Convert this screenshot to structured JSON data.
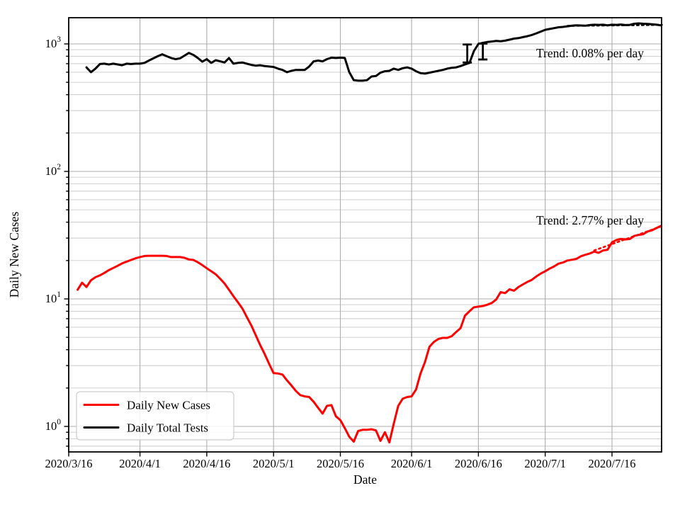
{
  "chart_data": {
    "type": "line",
    "title": "",
    "xlabel": "Date",
    "ylabel": "Daily New Cases",
    "yscale": "log",
    "ylim": [
      0.63,
      1600
    ],
    "x_unit": "days since 2020/3/16",
    "xlim_days": [
      0,
      133.2
    ],
    "grid": "major+minor horizontal, major vertical",
    "x_ticks": [
      {
        "day": 0,
        "label": "2020/3/16"
      },
      {
        "day": 16,
        "label": "2020/4/1"
      },
      {
        "day": 31,
        "label": "2020/4/16"
      },
      {
        "day": 46,
        "label": "2020/5/1"
      },
      {
        "day": 61,
        "label": "2020/5/16"
      },
      {
        "day": 77,
        "label": "2020/6/1"
      },
      {
        "day": 92,
        "label": "2020/6/16"
      },
      {
        "day": 107,
        "label": "2020/7/1"
      },
      {
        "day": 122,
        "label": "2020/7/16"
      }
    ],
    "y_ticks": [
      {
        "value": 1,
        "base": "10",
        "exp": "0"
      },
      {
        "value": 10,
        "base": "10",
        "exp": "1"
      },
      {
        "value": 100,
        "base": "10",
        "exp": "2"
      },
      {
        "value": 1000,
        "base": "10",
        "exp": "3"
      }
    ],
    "series": [
      {
        "name": "Daily New Cases",
        "color": "#ff0000",
        "style": "solid",
        "width": 3,
        "points": [
          [
            2,
            11.8
          ],
          [
            3,
            13.4
          ],
          [
            4,
            12.4
          ],
          [
            5,
            14.0
          ],
          [
            6,
            14.8
          ],
          [
            7,
            15.3
          ],
          [
            8,
            16.0
          ],
          [
            9,
            16.8
          ],
          [
            10,
            17.5
          ],
          [
            11,
            18.2
          ],
          [
            12,
            19.0
          ],
          [
            13,
            19.6
          ],
          [
            14,
            20.2
          ],
          [
            15,
            20.8
          ],
          [
            16,
            21.3
          ],
          [
            17,
            21.7
          ],
          [
            18,
            21.8
          ],
          [
            19,
            21.8
          ],
          [
            20,
            21.8
          ],
          [
            21,
            21.8
          ],
          [
            22,
            21.7
          ],
          [
            23,
            21.3
          ],
          [
            24,
            21.3
          ],
          [
            25,
            21.3
          ],
          [
            26,
            21.0
          ],
          [
            27,
            20.4
          ],
          [
            28,
            20.2
          ],
          [
            29,
            19.4
          ],
          [
            30,
            18.4
          ],
          [
            31,
            17.4
          ],
          [
            32,
            16.5
          ],
          [
            33,
            15.6
          ],
          [
            34,
            14.4
          ],
          [
            35,
            13.2
          ],
          [
            36,
            11.8
          ],
          [
            37,
            10.5
          ],
          [
            38,
            9.4
          ],
          [
            39,
            8.4
          ],
          [
            40,
            7.2
          ],
          [
            41,
            6.2
          ],
          [
            42,
            5.2
          ],
          [
            43,
            4.35
          ],
          [
            44,
            3.7
          ],
          [
            45,
            3.1
          ],
          [
            46,
            2.62
          ],
          [
            47,
            2.6
          ],
          [
            48,
            2.55
          ],
          [
            49,
            2.3
          ],
          [
            50,
            2.1
          ],
          [
            51,
            1.9
          ],
          [
            52,
            1.76
          ],
          [
            53,
            1.72
          ],
          [
            54,
            1.7
          ],
          [
            55,
            1.56
          ],
          [
            56,
            1.4
          ],
          [
            57,
            1.26
          ],
          [
            58,
            1.45
          ],
          [
            59,
            1.47
          ],
          [
            60,
            1.2
          ],
          [
            61,
            1.12
          ],
          [
            62,
            0.97
          ],
          [
            63,
            0.83
          ],
          [
            64,
            0.76
          ],
          [
            65,
            0.92
          ],
          [
            66,
            0.94
          ],
          [
            67,
            0.94
          ],
          [
            68,
            0.95
          ],
          [
            69,
            0.93
          ],
          [
            70,
            0.77
          ],
          [
            71,
            0.9
          ],
          [
            72,
            0.75
          ],
          [
            73,
            1.05
          ],
          [
            74,
            1.45
          ],
          [
            75,
            1.65
          ],
          [
            76,
            1.7
          ],
          [
            77,
            1.72
          ],
          [
            78,
            1.95
          ],
          [
            79,
            2.6
          ],
          [
            80,
            3.2
          ],
          [
            81,
            4.2
          ],
          [
            82,
            4.6
          ],
          [
            83,
            4.85
          ],
          [
            84,
            4.95
          ],
          [
            85,
            4.95
          ],
          [
            86,
            5.1
          ],
          [
            87,
            5.5
          ],
          [
            88,
            5.9
          ],
          [
            89,
            7.4
          ],
          [
            90,
            8.0
          ],
          [
            91,
            8.6
          ],
          [
            92,
            8.7
          ],
          [
            93,
            8.8
          ],
          [
            94,
            9.0
          ],
          [
            95,
            9.3
          ],
          [
            96,
            9.9
          ],
          [
            97,
            11.3
          ],
          [
            98,
            11.1
          ],
          [
            99,
            11.9
          ],
          [
            100,
            11.6
          ],
          [
            101,
            12.4
          ],
          [
            102,
            13.0
          ],
          [
            103,
            13.6
          ],
          [
            104,
            14.1
          ],
          [
            105,
            15.0
          ],
          [
            106,
            15.8
          ],
          [
            107,
            16.5
          ],
          [
            108,
            17.3
          ],
          [
            109,
            18.0
          ],
          [
            110,
            18.9
          ],
          [
            111,
            19.3
          ],
          [
            112,
            20.0
          ],
          [
            113,
            20.3
          ],
          [
            114,
            20.6
          ],
          [
            115,
            21.6
          ],
          [
            116,
            22.2
          ],
          [
            117,
            22.7
          ],
          [
            118,
            23.5
          ],
          [
            119,
            23.0
          ],
          [
            120,
            24.0
          ],
          [
            121,
            24.3
          ],
          [
            122,
            27.8
          ],
          [
            123,
            29.0
          ],
          [
            124,
            29.5
          ],
          [
            125,
            29.3
          ],
          [
            126,
            29.5
          ],
          [
            127,
            31.2
          ],
          [
            128,
            31.8
          ],
          [
            129,
            32.2
          ],
          [
            130,
            33.8
          ],
          [
            131,
            34.6
          ],
          [
            132,
            36.0
          ],
          [
            133,
            37.4
          ]
        ]
      },
      {
        "name": "Daily Total Tests",
        "color": "#000000",
        "style": "solid",
        "width": 3,
        "points": [
          [
            4,
            655
          ],
          [
            5,
            600
          ],
          [
            6,
            640
          ],
          [
            7,
            695
          ],
          [
            8,
            700
          ],
          [
            9,
            690
          ],
          [
            10,
            700
          ],
          [
            11,
            690
          ],
          [
            12,
            680
          ],
          [
            13,
            700
          ],
          [
            14,
            695
          ],
          [
            15,
            700
          ],
          [
            16,
            700
          ],
          [
            17,
            710
          ],
          [
            18,
            740
          ],
          [
            19,
            770
          ],
          [
            20,
            800
          ],
          [
            21,
            830
          ],
          [
            22,
            800
          ],
          [
            23,
            775
          ],
          [
            24,
            760
          ],
          [
            25,
            770
          ],
          [
            26,
            810
          ],
          [
            27,
            850
          ],
          [
            28,
            820
          ],
          [
            29,
            775
          ],
          [
            30,
            725
          ],
          [
            31,
            760
          ],
          [
            32,
            710
          ],
          [
            33,
            745
          ],
          [
            34,
            730
          ],
          [
            35,
            715
          ],
          [
            36,
            775
          ],
          [
            37,
            700
          ],
          [
            38,
            710
          ],
          [
            39,
            715
          ],
          [
            40,
            700
          ],
          [
            41,
            685
          ],
          [
            42,
            675
          ],
          [
            43,
            680
          ],
          [
            44,
            670
          ],
          [
            45,
            665
          ],
          [
            46,
            660
          ],
          [
            47,
            640
          ],
          [
            48,
            625
          ],
          [
            49,
            600
          ],
          [
            50,
            615
          ],
          [
            51,
            625
          ],
          [
            52,
            625
          ],
          [
            53,
            625
          ],
          [
            54,
            665
          ],
          [
            55,
            730
          ],
          [
            56,
            740
          ],
          [
            57,
            730
          ],
          [
            58,
            760
          ],
          [
            59,
            780
          ],
          [
            60,
            775
          ],
          [
            61,
            780
          ],
          [
            62,
            775
          ],
          [
            63,
            600
          ],
          [
            64,
            520
          ],
          [
            65,
            515
          ],
          [
            66,
            515
          ],
          [
            67,
            520
          ],
          [
            68,
            555
          ],
          [
            69,
            560
          ],
          [
            70,
            595
          ],
          [
            71,
            610
          ],
          [
            72,
            615
          ],
          [
            73,
            640
          ],
          [
            74,
            625
          ],
          [
            75,
            645
          ],
          [
            76,
            655
          ],
          [
            77,
            640
          ],
          [
            78,
            610
          ],
          [
            79,
            590
          ],
          [
            80,
            585
          ],
          [
            81,
            595
          ],
          [
            82,
            605
          ],
          [
            83,
            615
          ],
          [
            84,
            625
          ],
          [
            85,
            640
          ],
          [
            86,
            650
          ],
          [
            87,
            655
          ],
          [
            88,
            670
          ],
          [
            89,
            690
          ],
          [
            90,
            710
          ],
          [
            91,
            880
          ],
          [
            92,
            1000
          ],
          [
            93,
            1020
          ],
          [
            94,
            1035
          ],
          [
            95,
            1045
          ],
          [
            96,
            1055
          ],
          [
            97,
            1050
          ],
          [
            98,
            1060
          ],
          [
            99,
            1080
          ],
          [
            100,
            1100
          ],
          [
            101,
            1110
          ],
          [
            102,
            1130
          ],
          [
            103,
            1150
          ],
          [
            104,
            1175
          ],
          [
            105,
            1210
          ],
          [
            106,
            1250
          ],
          [
            107,
            1290
          ],
          [
            108,
            1310
          ],
          [
            109,
            1330
          ],
          [
            110,
            1350
          ],
          [
            111,
            1360
          ],
          [
            112,
            1375
          ],
          [
            113,
            1390
          ],
          [
            114,
            1400
          ],
          [
            115,
            1395
          ],
          [
            116,
            1390
          ],
          [
            117,
            1405
          ],
          [
            118,
            1415
          ],
          [
            119,
            1410
          ],
          [
            120,
            1415
          ],
          [
            121,
            1400
          ],
          [
            122,
            1415
          ],
          [
            123,
            1410
          ],
          [
            124,
            1420
          ],
          [
            125,
            1405
          ],
          [
            126,
            1410
          ],
          [
            127,
            1440
          ],
          [
            128,
            1450
          ],
          [
            129,
            1440
          ],
          [
            130,
            1435
          ],
          [
            131,
            1425
          ],
          [
            132,
            1415
          ],
          [
            133,
            1400
          ]
        ]
      },
      {
        "name": "Daily New Cases trend fit",
        "color": "#ff0000",
        "style": "dotted",
        "width": 2.6,
        "points": [
          [
            118,
            24.0
          ],
          [
            133.2,
            37.2
          ]
        ]
      },
      {
        "name": "Daily Total Tests trend fit",
        "color": "#000000",
        "style": "dotted",
        "width": 2.6,
        "points": [
          [
            112,
            1385
          ],
          [
            133.2,
            1410
          ]
        ]
      }
    ],
    "error_bars": [
      {
        "day": 89.5,
        "lo": 715,
        "hi": 990
      },
      {
        "day": 93.0,
        "lo": 755,
        "hi": 1005
      }
    ],
    "annotations": [
      {
        "text": "Trend: 0.08% per day",
        "x": 757,
        "y": 81
      },
      {
        "text": "Trend: 2.77% per day",
        "x": 757,
        "y": 317
      }
    ],
    "legend": {
      "position": "lower left",
      "entries": [
        {
          "label": "Daily New Cases",
          "color": "#ff0000"
        },
        {
          "label": "Daily Total Tests",
          "color": "#000000"
        }
      ]
    },
    "colors": {
      "grid_major": "#adadad",
      "grid_minor": "#c9c9c9",
      "spine": "#000000",
      "legend_border": "#cccccc",
      "background": "#ffffff"
    }
  }
}
